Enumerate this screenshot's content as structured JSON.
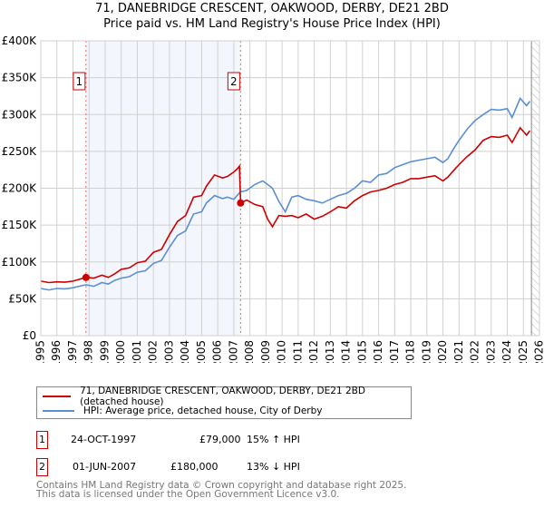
{
  "chart_data": {
    "type": "line",
    "title": "71, DANEBRIDGE CRESCENT, OAKWOOD, DERBY, DE21 2BD",
    "subtitle": "Price paid vs. HM Land Registry's House Price Index (HPI)",
    "xlim": [
      1995,
      2026
    ],
    "ylim": [
      0,
      400000
    ],
    "x_ticks": [
      "1995",
      "1996",
      "1997",
      "1998",
      "1999",
      "2000",
      "2001",
      "2002",
      "2003",
      "2004",
      "2005",
      "2006",
      "2007",
      "2008",
      "2009",
      "2010",
      "2011",
      "2012",
      "2013",
      "2014",
      "2015",
      "2016",
      "2017",
      "2018",
      "2019",
      "2020",
      "2021",
      "2022",
      "2023",
      "2024",
      "2025",
      "2026"
    ],
    "y_ticks": [
      {
        "v": 0,
        "label": "£0"
      },
      {
        "v": 50000,
        "label": "£50K"
      },
      {
        "v": 100000,
        "label": "£100K"
      },
      {
        "v": 150000,
        "label": "£150K"
      },
      {
        "v": 200000,
        "label": "£200K"
      },
      {
        "v": 250000,
        "label": "£250K"
      },
      {
        "v": 300000,
        "label": "£300K"
      },
      {
        "v": 350000,
        "label": "£350K"
      },
      {
        "v": 400000,
        "label": "£400K"
      }
    ],
    "series": [
      {
        "name": "71, DANEBRIDGE CRESCENT, OAKWOOD, DERBY, DE21 2BD (detached house)",
        "color": "#cc0000",
        "x": [
          1995,
          1995.5,
          1996,
          1996.5,
          1997,
          1997.8,
          1998.3,
          1998.8,
          1999.2,
          1999.6,
          2000,
          2000.5,
          2001,
          2001.5,
          2002,
          2002.5,
          2003,
          2003.5,
          2004,
          2004.5,
          2005,
          2005.3,
          2005.8,
          2006.3,
          2006.6,
          2007,
          2007.2,
          2007.35,
          2007.42,
          2007.8,
          2008.3,
          2008.8,
          2009.1,
          2009.4,
          2009.8,
          2010.2,
          2010.6,
          2011,
          2011.5,
          2012,
          2012.5,
          2013,
          2013.5,
          2014,
          2014.5,
          2015,
          2015.5,
          2016,
          2016.5,
          2017,
          2017.5,
          2018,
          2018.5,
          2019,
          2019.5,
          2020,
          2020.3,
          2020.7,
          2021,
          2021.5,
          2022,
          2022.5,
          2023,
          2023.5,
          2024,
          2024.3,
          2024.8,
          2025.2,
          2025.4
        ],
        "y": [
          74000,
          72000,
          73000,
          72500,
          74000,
          79000,
          78000,
          82000,
          79000,
          84000,
          90000,
          92000,
          99000,
          101000,
          113000,
          117000,
          137000,
          155000,
          163000,
          188000,
          190000,
          203000,
          218000,
          214000,
          216000,
          222000,
          226000,
          230000,
          180000,
          184000,
          178000,
          175000,
          158000,
          148000,
          163000,
          162000,
          163000,
          160000,
          165000,
          158000,
          162000,
          168000,
          175000,
          173000,
          183000,
          190000,
          195000,
          197000,
          200000,
          205000,
          208000,
          213000,
          213000,
          215000,
          217000,
          210000,
          215000,
          225000,
          232000,
          243000,
          252000,
          265000,
          270000,
          269000,
          272000,
          262000,
          282000,
          272000,
          278000
        ]
      },
      {
        "name": "HPI: Average price, detached house, City of Derby",
        "color": "#5b8fd4",
        "x": [
          1995,
          1995.5,
          1996,
          1996.5,
          1997,
          1997.8,
          1998.3,
          1998.8,
          1999.2,
          1999.6,
          2000,
          2000.5,
          2001,
          2001.5,
          2002,
          2002.5,
          2003,
          2003.5,
          2004,
          2004.5,
          2005,
          2005.3,
          2005.8,
          2006.3,
          2006.6,
          2007,
          2007.4,
          2007.8,
          2008.3,
          2008.8,
          2009.1,
          2009.4,
          2009.8,
          2010.2,
          2010.6,
          2011,
          2011.5,
          2012,
          2012.5,
          2013,
          2013.5,
          2014,
          2014.5,
          2015,
          2015.5,
          2016,
          2016.5,
          2017,
          2017.5,
          2018,
          2018.5,
          2019,
          2019.5,
          2020,
          2020.3,
          2020.7,
          2021,
          2021.5,
          2022,
          2022.5,
          2023,
          2023.5,
          2024,
          2024.3,
          2024.8,
          2025.2,
          2025.4
        ],
        "y": [
          64000,
          62000,
          64000,
          63500,
          65000,
          69000,
          67000,
          72000,
          70000,
          75000,
          78000,
          80000,
          86000,
          88000,
          98000,
          102000,
          120000,
          136000,
          142000,
          165000,
          168000,
          180000,
          190000,
          186000,
          188000,
          185000,
          195000,
          197000,
          205000,
          210000,
          205000,
          200000,
          182000,
          168000,
          188000,
          190000,
          185000,
          183000,
          180000,
          185000,
          190000,
          193000,
          200000,
          210000,
          208000,
          218000,
          220000,
          228000,
          232000,
          236000,
          238000,
          240000,
          242000,
          235000,
          240000,
          255000,
          265000,
          280000,
          292000,
          300000,
          307000,
          306000,
          308000,
          296000,
          322000,
          312000,
          318000
        ]
      }
    ],
    "sales": [
      {
        "id": "1",
        "x": 1997.81,
        "y": 79000
      },
      {
        "id": "2",
        "x": 2007.42,
        "y": 180000
      }
    ],
    "grid": true
  },
  "legend": {
    "items": [
      {
        "label": "71, DANEBRIDGE CRESCENT, OAKWOOD, DERBY, DE21 2BD (detached house)",
        "color": "#cc0000"
      },
      {
        "label": "HPI: Average price, detached house, City of Derby",
        "color": "#5b8fd4"
      }
    ]
  },
  "transactions": [
    {
      "id": "1",
      "date": "24-OCT-1997",
      "price": "£79,000",
      "hpi": "15% ↑ HPI"
    },
    {
      "id": "2",
      "date": "01-JUN-2007",
      "price": "£180,000",
      "hpi": "13% ↓ HPI"
    }
  ],
  "footer": {
    "line1": "Contains HM Land Registry data © Crown copyright and database right 2025.",
    "line2": "This data is licensed under the Open Government Licence v3.0."
  }
}
